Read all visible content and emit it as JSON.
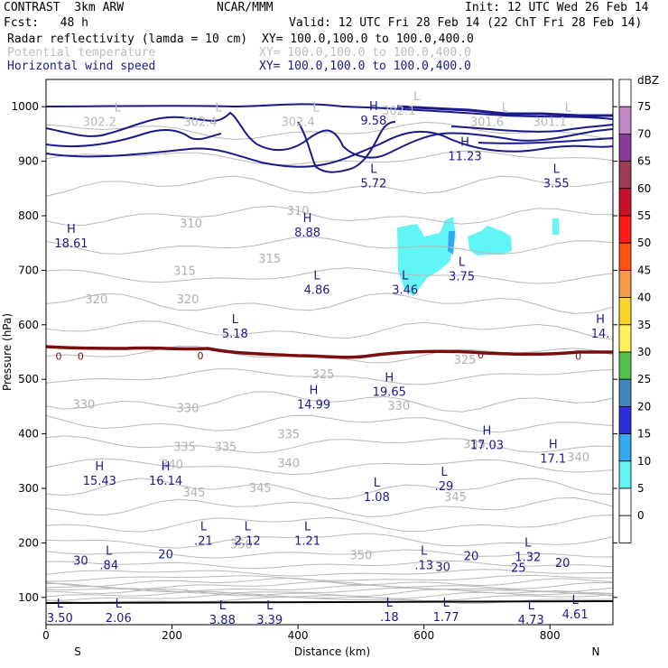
{
  "header": {
    "project": "CONTRAST  3km ARW",
    "org": "NCAR/MMM",
    "init": "Init: 12 UTC Wed 26 Feb 14",
    "fcst": "Fcst:   48 h",
    "valid": "Valid: 12 UTC Fri 28 Feb 14 (22 ChT Fri 28 Feb 14)",
    "field1": "Radar reflectivity (lamda = 10 cm)",
    "xy1": "XY= 100.0,100.0 to 100.0,400.0",
    "field2": "Potential temperature",
    "xy2": "XY= 100.0,100.0 to 100.0,400.0",
    "field3": "Horizontal wind speed",
    "xy3": "XY= 100.0,100.0 to 100.0,400.0"
  },
  "chart_data": {
    "type": "cross-section",
    "xlabel": "Distance (km)",
    "ylabel": "Pressure (hPa)",
    "xlim": [
      0,
      900
    ],
    "ylim": [
      1050,
      50
    ],
    "x_ticks": [
      0,
      200,
      400,
      600,
      800
    ],
    "y_ticks": [
      100,
      200,
      300,
      400,
      500,
      600,
      700,
      800,
      900,
      1000
    ],
    "x_end_labels": {
      "left": "S",
      "right": "N"
    },
    "colorbar": {
      "unit": "dBZ",
      "levels": [
        "75",
        "70",
        "65",
        "60",
        "55",
        "50",
        "45",
        "40",
        "35",
        "30",
        "25",
        "20",
        "15",
        "10",
        "5",
        "0"
      ],
      "colors": [
        "#ffffff",
        "#c586c5",
        "#8b3a9a",
        "#9b3b55",
        "#c8122c",
        "#ff1b1b",
        "#ff5511",
        "#f89a4a",
        "#fdd52a",
        "#fff35a",
        "#54c24a",
        "#3f86c0",
        "#2d2dd9",
        "#31a9f3",
        "#63f5f5",
        "#ffffff"
      ]
    },
    "theta_labels": [
      {
        "x": 310,
        "p": 198,
        "text": "350"
      },
      {
        "x": 500,
        "p": 178,
        "text": "350"
      },
      {
        "x": 235,
        "p": 293,
        "text": "345"
      },
      {
        "x": 340,
        "p": 302,
        "text": "345"
      },
      {
        "x": 650,
        "p": 285,
        "text": "345"
      },
      {
        "x": 200,
        "p": 345,
        "text": "340"
      },
      {
        "x": 385,
        "p": 347,
        "text": "340"
      },
      {
        "x": 845,
        "p": 358,
        "text": "340"
      },
      {
        "x": 220,
        "p": 377,
        "text": "335"
      },
      {
        "x": 285,
        "p": 377,
        "text": "335"
      },
      {
        "x": 385,
        "p": 400,
        "text": "335"
      },
      {
        "x": 680,
        "p": 382,
        "text": "335"
      },
      {
        "x": 60,
        "p": 455,
        "text": "330"
      },
      {
        "x": 225,
        "p": 448,
        "text": "330"
      },
      {
        "x": 560,
        "p": 452,
        "text": "330"
      },
      {
        "x": 440,
        "p": 510,
        "text": "325"
      },
      {
        "x": 665,
        "p": 537,
        "text": "325"
      },
      {
        "x": 80,
        "p": 648,
        "text": "320"
      },
      {
        "x": 225,
        "p": 648,
        "text": "320"
      },
      {
        "x": 220,
        "p": 700,
        "text": "315"
      },
      {
        "x": 355,
        "p": 722,
        "text": "315"
      },
      {
        "x": 230,
        "p": 787,
        "text": "310"
      },
      {
        "x": 400,
        "p": 810,
        "text": "310"
      }
    ],
    "wind_labels": [
      {
        "x": 55,
        "p": 168,
        "text": "30"
      },
      {
        "x": 190,
        "p": 180,
        "text": "20"
      },
      {
        "x": 630,
        "p": 157,
        "text": "30"
      },
      {
        "x": 675,
        "p": 177,
        "text": "20"
      },
      {
        "x": 750,
        "p": 155,
        "text": "25"
      },
      {
        "x": 820,
        "p": 164,
        "text": "20"
      },
      {
        "x": 20,
        "p": 544,
        "text": "0"
      },
      {
        "x": 55,
        "p": 544,
        "text": "0"
      },
      {
        "x": 245,
        "p": 545,
        "text": "0"
      },
      {
        "x": 690,
        "p": 547,
        "text": "0"
      },
      {
        "x": 845,
        "p": 544,
        "text": "0"
      }
    ],
    "pressure_centers": [
      {
        "type": "L",
        "value": "3.50",
        "x": 22,
        "p": 88
      },
      {
        "type": "L",
        "value": "2.06",
        "x": 115,
        "p": 88
      },
      {
        "type": "L",
        "value": "3.88",
        "x": 280,
        "p": 85
      },
      {
        "type": "L",
        "value": "3.39",
        "x": 355,
        "p": 85
      },
      {
        "type": "L",
        "value": ".18",
        "x": 545,
        "p": 90
      },
      {
        "type": "L",
        "value": "1.77",
        "x": 635,
        "p": 90
      },
      {
        "type": "L",
        "value": "4.73",
        "x": 770,
        "p": 85
      },
      {
        "type": "L",
        "value": "4.61",
        "x": 840,
        "p": 95
      },
      {
        "type": "L",
        "value": ".84",
        "x": 100,
        "p": 185
      },
      {
        "type": "L",
        "value": ".13",
        "x": 600,
        "p": 185
      },
      {
        "type": "L",
        "value": "1.32",
        "x": 765,
        "p": 200
      },
      {
        "type": "L",
        "value": ".21",
        "x": 250,
        "p": 230
      },
      {
        "type": "L",
        "value": "2.12",
        "x": 320,
        "p": 230
      },
      {
        "type": "L",
        "value": "1.21",
        "x": 415,
        "p": 230
      },
      {
        "type": "L",
        "value": "1.08",
        "x": 525,
        "p": 310
      },
      {
        "type": "L",
        "value": ".29",
        "x": 632,
        "p": 330
      },
      {
        "type": "H",
        "value": "15.43",
        "x": 85,
        "p": 340
      },
      {
        "type": "H",
        "value": "16.14",
        "x": 190,
        "p": 340
      },
      {
        "type": "H",
        "value": "17.03",
        "x": 700,
        "p": 405
      },
      {
        "type": "H",
        "value": "17.1",
        "x": 805,
        "p": 380
      },
      {
        "type": "H",
        "value": "14.99",
        "x": 425,
        "p": 480
      },
      {
        "type": "H",
        "value": "19.65",
        "x": 545,
        "p": 503
      },
      {
        "type": "L",
        "value": "5.18",
        "x": 300,
        "p": 610
      },
      {
        "type": "H",
        "value": "14.",
        "x": 880,
        "p": 610
      },
      {
        "type": "L",
        "value": "4.86",
        "x": 430,
        "p": 690
      },
      {
        "type": "L",
        "value": "3.46",
        "x": 570,
        "p": 690
      },
      {
        "type": "L",
        "value": "3.75",
        "x": 660,
        "p": 715
      },
      {
        "type": "H",
        "value": "18.61",
        "x": 40,
        "p": 775
      },
      {
        "type": "H",
        "value": "8.88",
        "x": 415,
        "p": 795
      },
      {
        "type": "L",
        "value": "5.72",
        "x": 520,
        "p": 885
      },
      {
        "type": "L",
        "value": "3.55",
        "x": 810,
        "p": 885
      },
      {
        "type": "H",
        "value": "11.23",
        "x": 665,
        "p": 935
      },
      {
        "type": "H",
        "value": "9.58",
        "x": 520,
        "p": 1000
      }
    ],
    "surface_theta_labels": [
      {
        "type": "L",
        "value": "302.2",
        "x": 85,
        "p": 985
      },
      {
        "type": "L",
        "value": "302.4",
        "x": 245,
        "p": 985
      },
      {
        "type": "L",
        "value": "302.4",
        "x": 400,
        "p": 985
      },
      {
        "type": "L",
        "value": "302.1",
        "x": 560,
        "p": 1005
      },
      {
        "type": "L",
        "value": "301.6",
        "x": 700,
        "p": 985
      },
      {
        "type": "L",
        "value": "301.1",
        "x": 800,
        "p": 985
      }
    ]
  }
}
